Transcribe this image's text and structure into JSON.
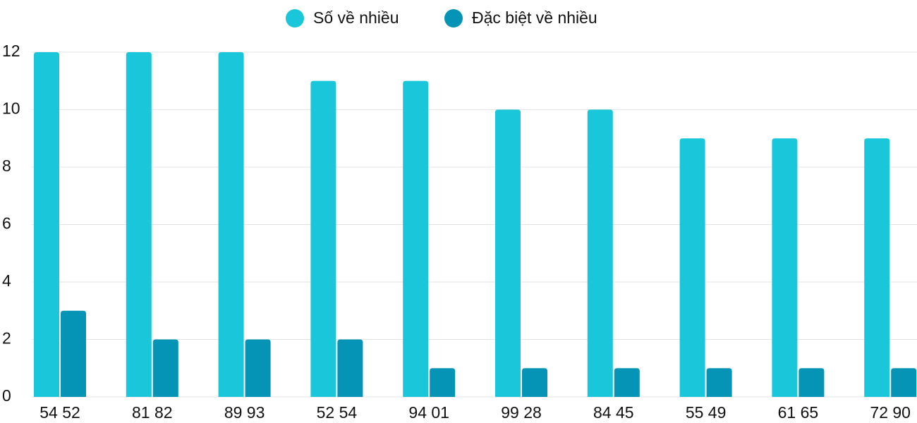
{
  "chart_data": {
    "type": "bar",
    "categories": [
      "54 52",
      "81 82",
      "89 93",
      "52 54",
      "94 01",
      "99 28",
      "84 45",
      "55 49",
      "61 65",
      "72 90"
    ],
    "series": [
      {
        "name": "Số về nhiều",
        "color": "#1ac7da",
        "values": [
          12,
          12,
          12,
          11,
          11,
          10,
          10,
          9,
          9,
          9
        ]
      },
      {
        "name": "Đặc biệt về nhiều",
        "color": "#0593b6",
        "values": [
          3,
          2,
          2,
          2,
          1,
          1,
          1,
          1,
          1,
          1
        ]
      }
    ],
    "ylim": [
      0,
      12
    ],
    "yticks": [
      0,
      2,
      4,
      6,
      8,
      10,
      12
    ],
    "grid": true,
    "legend": "top"
  }
}
